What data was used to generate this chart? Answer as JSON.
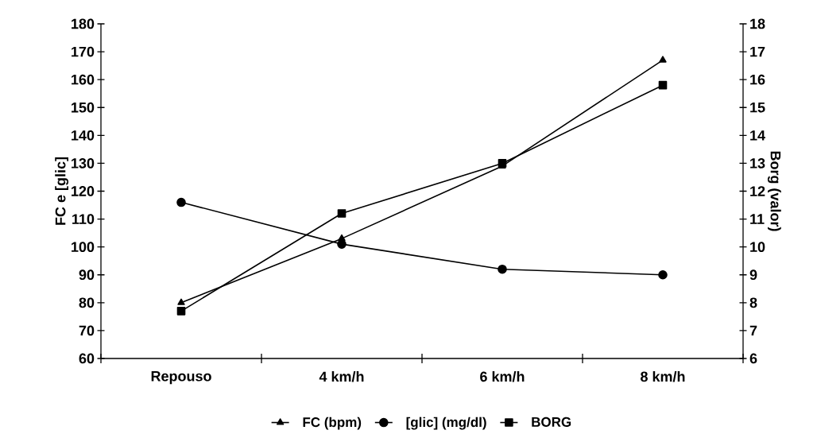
{
  "chart_data": {
    "type": "line",
    "ylabel": "FC e [glic]",
    "y2label": "Borg (valor)",
    "categories": [
      "Repouso",
      "4 km/h",
      "6 km/h",
      "8 km/h"
    ],
    "ylim": [
      60,
      180
    ],
    "yticks": [
      60,
      70,
      80,
      90,
      100,
      110,
      120,
      130,
      140,
      150,
      160,
      170,
      180
    ],
    "y2lim": [
      6,
      18
    ],
    "y2ticks": [
      6,
      7,
      8,
      9,
      10,
      11,
      12,
      13,
      14,
      15,
      16,
      17,
      18
    ],
    "grid": false,
    "legend": "bottom",
    "line_style": "solid",
    "series": [
      {
        "name": "FC (bpm)",
        "color": "#000000",
        "marker": "triangle",
        "values": [
          80,
          103,
          129,
          167
        ]
      },
      {
        "name": "[glic] (mg/dl)",
        "color": "#000000",
        "marker": "circle",
        "values": [
          116,
          101,
          92,
          90
        ]
      },
      {
        "name": "BORG",
        "color": "#000000",
        "marker": "square",
        "axis": "y2",
        "values": [
          7.7,
          11.2,
          13,
          15.8
        ]
      }
    ]
  }
}
